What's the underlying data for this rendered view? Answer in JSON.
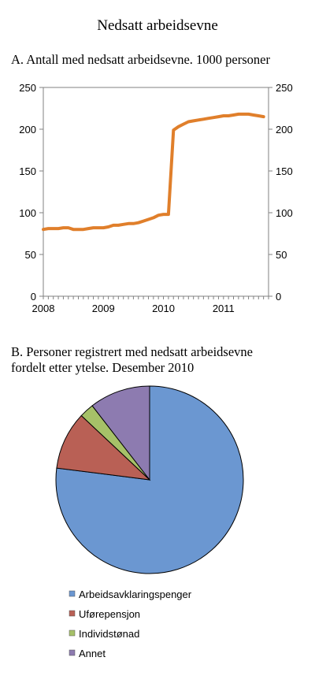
{
  "title": "Nedsatt arbeidsevne",
  "panel_a": {
    "title": "A.  Antall med nedsatt arbeidsevne. 1000 personer"
  },
  "panel_b": {
    "title_line1": "B.  Personer  registrert med nedsatt arbeidsevne",
    "title_line2": "fordelt etter ytelse. Desember 2010"
  },
  "colors": {
    "line": "#e07f2b",
    "arbeidsavklaringspenger": "#6b97d1",
    "uforepensjon": "#b96055",
    "individstonad": "#a6c168",
    "annet": "#8d7bb0"
  },
  "chart_data": [
    {
      "type": "line",
      "title": "A.  Antall med nedsatt arbeidsevne. 1000 personer",
      "xlabel": "",
      "ylabel": "",
      "x_ticks": [
        "2008",
        "2009",
        "2010",
        "2011"
      ],
      "y_ticks": [
        0,
        50,
        100,
        150,
        200,
        250
      ],
      "ylim": [
        0,
        250
      ],
      "xlim": [
        2008.0,
        2011.75
      ],
      "secondary_y_axis": true,
      "grid": false,
      "series": [
        {
          "color": "#e07f2b",
          "x": [
            2008.0,
            2008.083,
            2008.167,
            2008.25,
            2008.333,
            2008.417,
            2008.5,
            2008.583,
            2008.667,
            2008.75,
            2008.833,
            2008.917,
            2009.0,
            2009.083,
            2009.167,
            2009.25,
            2009.333,
            2009.417,
            2009.5,
            2009.583,
            2009.667,
            2009.75,
            2009.833,
            2009.917,
            2010.0,
            2010.083,
            2010.167,
            2010.25,
            2010.333,
            2010.417,
            2010.5,
            2010.583,
            2010.667,
            2010.75,
            2010.833,
            2010.917,
            2011.0,
            2011.083,
            2011.167,
            2011.25,
            2011.333,
            2011.417,
            2011.5,
            2011.583,
            2011.667
          ],
          "y": [
            80,
            81,
            81,
            81,
            82,
            82,
            80,
            80,
            80,
            81,
            82,
            82,
            82,
            83,
            85,
            85,
            86,
            87,
            87,
            88,
            90,
            92,
            94,
            97,
            98,
            98,
            199,
            203,
            206,
            209,
            210,
            211,
            212,
            213,
            214,
            215,
            216,
            216,
            217,
            218,
            218,
            218,
            217,
            216,
            215
          ]
        }
      ]
    },
    {
      "type": "pie",
      "title": "B.  Personer  registrert med nedsatt arbeidsevne fordelt etter ytelse. Desember 2010",
      "labels": [
        "Arbeidsavklaringspenger",
        "Uførepensjon",
        "Individstønad",
        "Annet"
      ],
      "values": [
        77,
        10,
        2.5,
        10.5
      ],
      "colors": [
        "#6b97d1",
        "#b96055",
        "#a6c168",
        "#8d7bb0"
      ],
      "legend_position": "bottom"
    }
  ]
}
